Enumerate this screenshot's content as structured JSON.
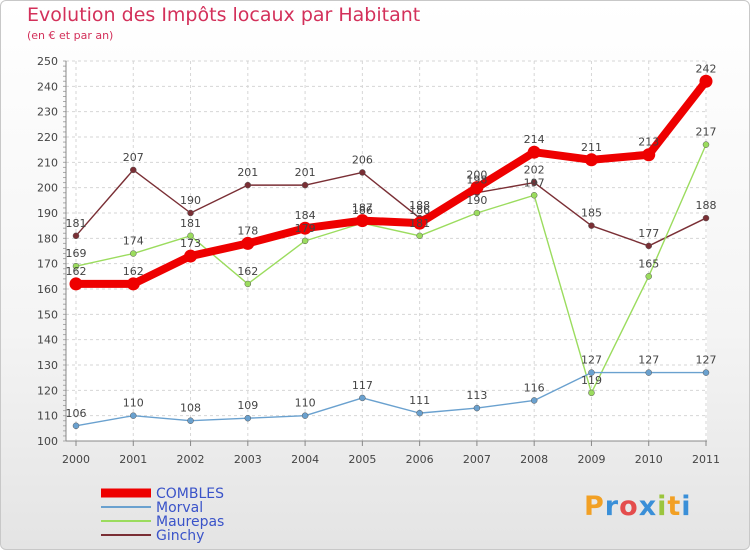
{
  "title": "Evolution des Impôts locaux par Habitant",
  "subtitle": "(en € et par an)",
  "logo": {
    "letters": [
      "P",
      "r",
      "o",
      "x",
      "i",
      "t",
      "i"
    ],
    "colors": [
      "#f2a024",
      "#3a8fd8",
      "#e44c4c",
      "#3a8fd8",
      "#9bc53d",
      "#f2a024",
      "#3a8fd8"
    ]
  },
  "chart_data": {
    "type": "line",
    "x": [
      "2000",
      "2001",
      "2002",
      "2003",
      "2004",
      "2005",
      "2006",
      "2007",
      "2008",
      "2009",
      "2010",
      "2011"
    ],
    "ylim": [
      100,
      250
    ],
    "yticks": [
      100,
      110,
      120,
      130,
      140,
      150,
      160,
      170,
      180,
      190,
      200,
      210,
      220,
      230,
      240,
      250
    ],
    "grid": true,
    "legend_position": "bottom-left",
    "series": [
      {
        "name": "COMBLES",
        "color": "#ee0000",
        "values": [
          162,
          162,
          173,
          178,
          184,
          187,
          186,
          200,
          214,
          211,
          213,
          242
        ]
      },
      {
        "name": "Morval",
        "color": "#6aa1cf",
        "values": [
          106,
          110,
          108,
          109,
          110,
          117,
          111,
          113,
          116,
          127,
          127,
          127
        ]
      },
      {
        "name": "Maurepas",
        "color": "#9bdc5e",
        "values": [
          169,
          174,
          181,
          162,
          179,
          186,
          181,
          190,
          197,
          119,
          165,
          217
        ]
      },
      {
        "name": "Ginchy",
        "color": "#7a2f35",
        "values": [
          181,
          207,
          190,
          201,
          201,
          206,
          188,
          198,
          202,
          185,
          177,
          188
        ]
      }
    ]
  }
}
